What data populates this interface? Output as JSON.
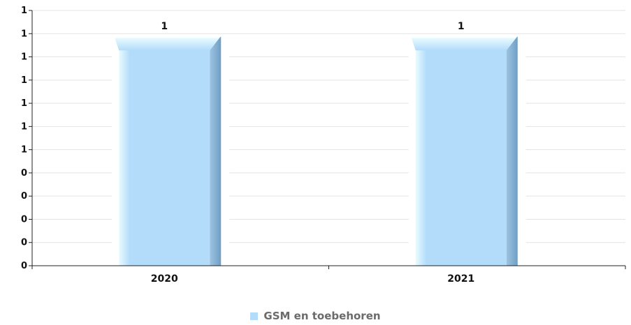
{
  "chart_data": {
    "type": "bar",
    "categories": [
      "2020",
      "2021"
    ],
    "series": [
      {
        "name": "GSM en toebehoren",
        "values": [
          1,
          1
        ],
        "data_labels": [
          "1",
          "1"
        ]
      }
    ],
    "y_tick_labels": [
      "0",
      "0",
      "0",
      "0",
      "0",
      "1",
      "1",
      "1",
      "1",
      "1",
      "1",
      "1"
    ],
    "ylim": [
      0,
      1.1
    ],
    "grid": true,
    "legend_position": "bottom-center",
    "colors": {
      "bar": "#b3dcfa",
      "bar_side": "#7ea9cc",
      "grid": "#e3e3e3",
      "axis": "#222222"
    }
  }
}
